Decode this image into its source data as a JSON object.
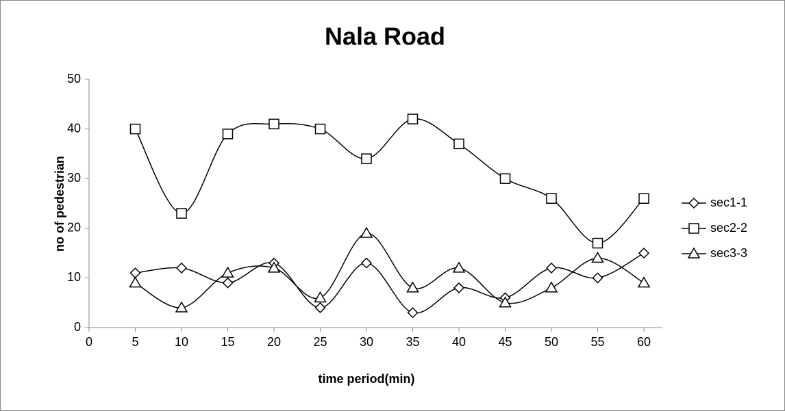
{
  "chart_data": {
    "type": "line",
    "title": "Nala Road",
    "x_label": "time period(min)",
    "y_label": "no of pedestrian",
    "x": [
      5,
      10,
      15,
      20,
      25,
      30,
      35,
      40,
      45,
      50,
      55,
      60
    ],
    "series": [
      {
        "name": "sec1-1",
        "color": "#000000",
        "marker": "diamond",
        "values": [
          11,
          12,
          9,
          13,
          4,
          13,
          3,
          8,
          6,
          12,
          10,
          15
        ]
      },
      {
        "name": "sec2-2",
        "color": "#000000",
        "marker": "square",
        "values": [
          40,
          23,
          39,
          41,
          40,
          34,
          42,
          37,
          30,
          26,
          17,
          26
        ]
      },
      {
        "name": "sec3-3",
        "color": "#000000",
        "marker": "triangle",
        "values": [
          9,
          4,
          11,
          12,
          6,
          19,
          8,
          12,
          5,
          8,
          14,
          9
        ]
      }
    ],
    "xlim": [
      0,
      62
    ],
    "xticks": [
      0,
      5,
      10,
      15,
      20,
      25,
      30,
      35,
      40,
      45,
      50,
      55,
      60
    ],
    "ylim": [
      0,
      50
    ],
    "yticks": [
      0,
      10,
      20,
      30,
      40,
      50
    ],
    "smooth": true,
    "legend": "right"
  }
}
